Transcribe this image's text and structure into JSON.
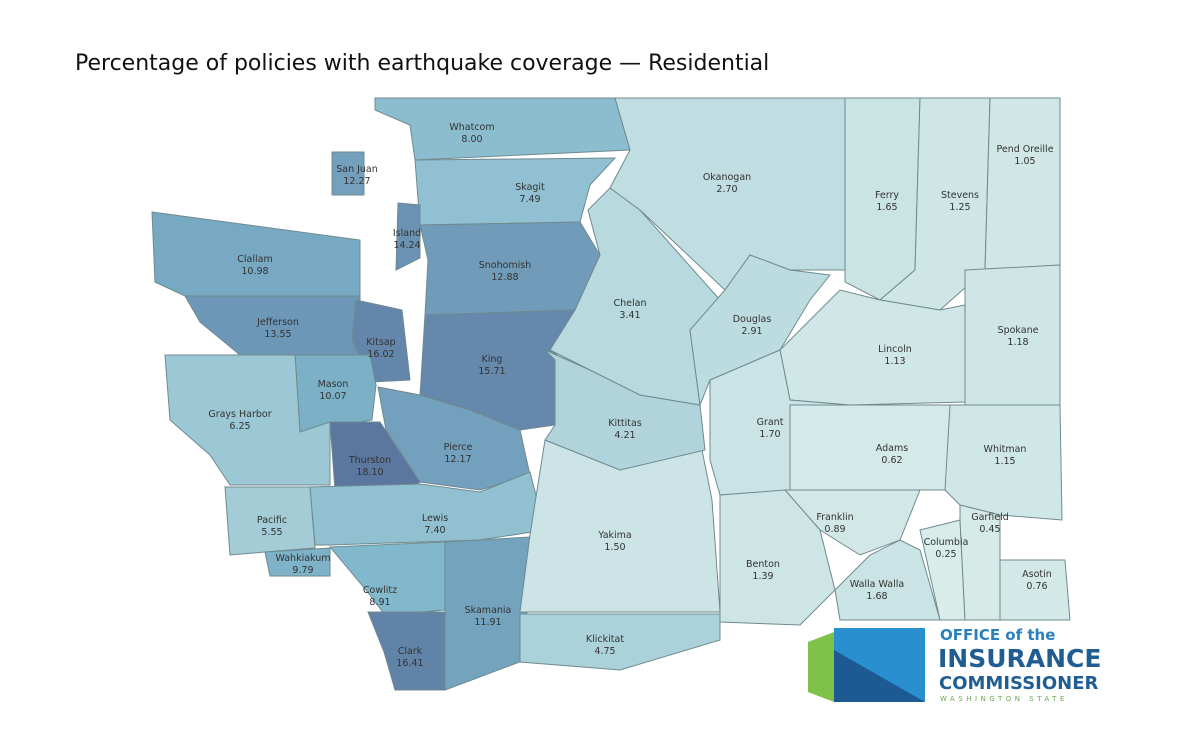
{
  "title": "Percentage of policies with earthquake coverage — Residential",
  "map": {
    "type": "choropleth",
    "regions": [
      "Whatcom",
      "Skagit",
      "San Juan",
      "Island",
      "Snohomish",
      "Clallam",
      "Jefferson",
      "Kitsap",
      "King",
      "Mason",
      "Grays Harbor",
      "Pierce",
      "Thurston",
      "Pacific",
      "Lewis",
      "Wahkiakum",
      "Cowlitz",
      "Skamania",
      "Clark",
      "Klickitat",
      "Yakima",
      "Kittitas",
      "Chelan",
      "Okanogan",
      "Douglas",
      "Ferry",
      "Stevens",
      "Pend Oreille",
      "Lincoln",
      "Spokane",
      "Grant",
      "Adams",
      "Whitman",
      "Franklin",
      "Benton",
      "Walla Walla",
      "Columbia",
      "Garfield",
      "Asotin"
    ],
    "values": [
      8,
      7.49,
      12.27,
      14.24,
      12.88,
      10.98,
      13.55,
      16.02,
      15.71,
      10.07,
      6.25,
      12.17,
      18.1,
      5.55,
      7.4,
      9.79,
      8.91,
      11.91,
      16.41,
      4.75,
      1.5,
      4.21,
      3.41,
      2.7,
      2.91,
      1.65,
      1.25,
      1.05,
      1.13,
      1.18,
      1.7,
      0.62,
      1.15,
      0.89,
      1.39,
      1.68,
      0.25,
      0.45,
      0.76
    ],
    "value_labels": [
      "8.00",
      "7.49",
      "12.27",
      "14.24",
      "12.88",
      "10.98",
      "13.55",
      "16.02",
      "15.71",
      "10.07",
      "6.25",
      "12.17",
      "18.10",
      "5.55",
      "7.40",
      "9.79",
      "8.91",
      "11.91",
      "16.41",
      "4.75",
      "1.50",
      "4.21",
      "3.41",
      "2.70",
      "2.91",
      "1.65",
      "1.25",
      "1.05",
      "1.13",
      "1.18",
      "1.70",
      "0.62",
      "1.15",
      "0.89",
      "1.39",
      "1.68",
      "0.25",
      "0.45",
      "0.76"
    ],
    "colors": [
      "#d8ece9",
      "#7fb6cb",
      "#5b77a0"
    ]
  },
  "logo": {
    "line1": "OFFICE of the",
    "line2": "INSURANCE",
    "line3": "COMMISSIONER",
    "line4": "WASHINGTON STATE"
  }
}
